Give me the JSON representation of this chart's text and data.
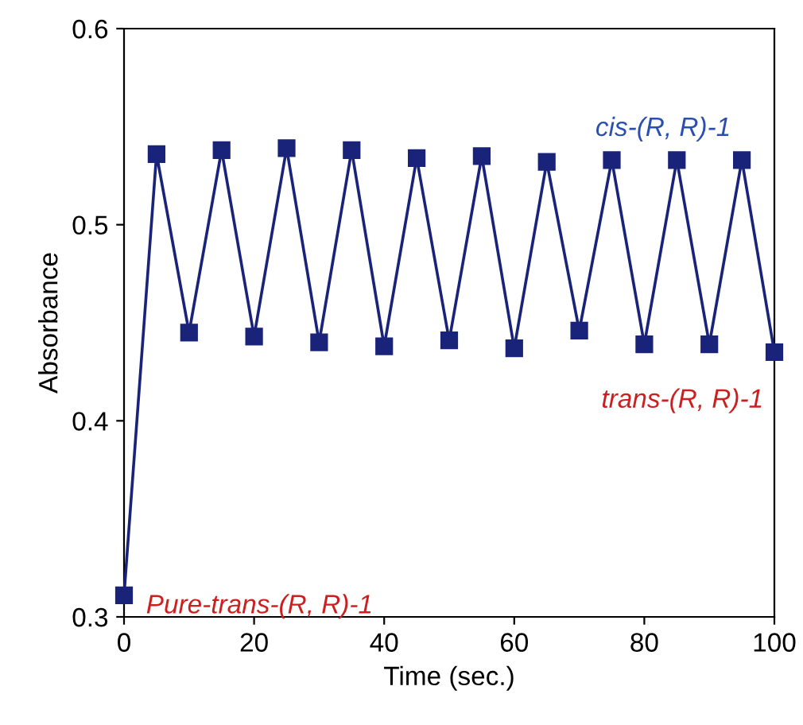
{
  "chart_data": {
    "type": "line",
    "xlabel": "Time (sec.)",
    "ylabel": "Absorbance",
    "x": [
      0,
      5,
      10,
      15,
      20,
      25,
      30,
      35,
      40,
      45,
      50,
      55,
      60,
      65,
      70,
      75,
      80,
      85,
      90,
      95,
      100
    ],
    "series": [
      {
        "color": "#1a237a",
        "values": [
          0.311,
          0.536,
          0.445,
          0.538,
          0.443,
          0.539,
          0.44,
          0.538,
          0.438,
          0.534,
          0.441,
          0.535,
          0.437,
          0.532,
          0.446,
          0.533,
          0.439,
          0.533,
          0.439,
          0.533,
          0.435
        ]
      }
    ],
    "marker": "square",
    "line_style": "solid",
    "grid": false,
    "legend": false,
    "xlim": [
      0,
      100
    ],
    "xticks": [
      0,
      20,
      40,
      60,
      80,
      100
    ],
    "ylim": [
      0.3,
      0.6
    ],
    "yticks": [
      0.3,
      0.4,
      0.5,
      0.6
    ],
    "annotations": [
      {
        "text": "cis-(R, R)-1",
        "x": 95,
        "y": 0.533
      },
      {
        "text": "trans-(R, R)-1",
        "x": 100,
        "y": 0.435
      },
      {
        "text": "Pure-trans-(R, R)-1",
        "x": 0,
        "y": 0.311
      }
    ]
  }
}
